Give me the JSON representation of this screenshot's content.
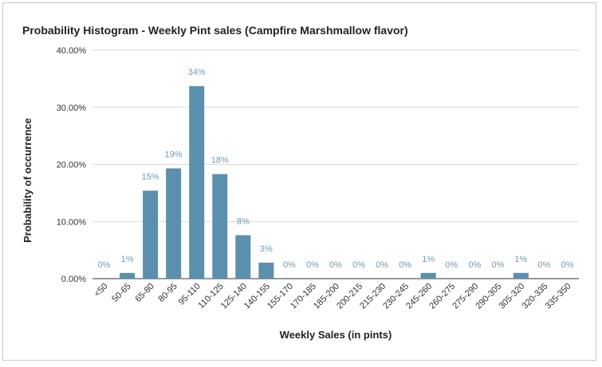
{
  "chart_data": {
    "type": "bar",
    "title": "Probability Histogram - Weekly Pint sales (Campfire Marshmallow flavor)",
    "xlabel": "Weekly Sales (in pints)",
    "ylabel": "Probability of occurrence",
    "categories": [
      "<50",
      "50-65",
      "65-80",
      "80-95",
      "95-110",
      "110-125",
      "125-140",
      "140-155",
      "155-170",
      "170-185",
      "185-200",
      "200-215",
      "215-230",
      "230-245",
      "245-260",
      "260-275",
      "275-290",
      "290-305",
      "305-320",
      "320-335",
      "335-350"
    ],
    "values": [
      0,
      1,
      15.4,
      19.3,
      33.7,
      18.3,
      7.6,
      2.8,
      0,
      0,
      0,
      0,
      0,
      0,
      1,
      0,
      0,
      0,
      1,
      0,
      0
    ],
    "data_labels": [
      "0%",
      "1%",
      "15%",
      "19%",
      "34%",
      "18%",
      "8%",
      "3%",
      "0%",
      "0%",
      "0%",
      "0%",
      "0%",
      "0%",
      "1%",
      "0%",
      "0%",
      "0%",
      "1%",
      "0%",
      "0%"
    ],
    "yticks": [
      0,
      10,
      20,
      30,
      40
    ],
    "ytick_labels": [
      "0.00%",
      "10.00%",
      "20.00%",
      "30.00%",
      "40.00%"
    ],
    "ylim": [
      0,
      40
    ],
    "grid": true,
    "legend": "none",
    "bar_color": "#5b8fae",
    "label_color": "#6a9cb6"
  }
}
